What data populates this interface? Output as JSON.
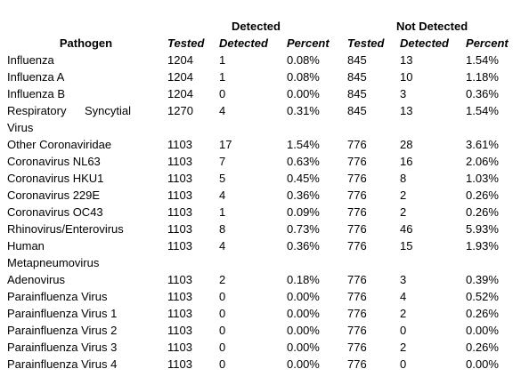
{
  "header": {
    "groups": [
      "Detected",
      "Not Detected"
    ],
    "columns": [
      "Pathogen",
      "Tested",
      "Detected",
      "Percent",
      "Tested",
      "Detected",
      "Percent"
    ]
  },
  "table": {
    "rows": [
      [
        "Influenza",
        "1204",
        "1",
        "0.08%",
        "845",
        "13",
        "1.54%"
      ],
      [
        "Influenza A",
        "1204",
        "1",
        "0.08%",
        "845",
        "10",
        "1.18%"
      ],
      [
        "Influenza B",
        "1204",
        "0",
        "0.00%",
        "845",
        "3",
        "0.36%"
      ],
      [
        "Respiratory Syncytial Virus",
        "1270",
        "4",
        "0.31%",
        "845",
        "13",
        "1.54%"
      ],
      [
        "Other Coronaviridae",
        "1103",
        "17",
        "1.54%",
        "776",
        "28",
        "3.61%"
      ],
      [
        "Coronavirus NL63",
        "1103",
        "7",
        "0.63%",
        "776",
        "16",
        "2.06%"
      ],
      [
        "Coronavirus HKU1",
        "1103",
        "5",
        "0.45%",
        "776",
        "8",
        "1.03%"
      ],
      [
        "Coronavirus 229E",
        "1103",
        "4",
        "0.36%",
        "776",
        "2",
        "0.26%"
      ],
      [
        "Coronavirus OC43",
        "1103",
        "1",
        "0.09%",
        "776",
        "2",
        "0.26%"
      ],
      [
        "Rhinovirus/Enterovirus",
        "1103",
        "8",
        "0.73%",
        "776",
        "46",
        "5.93%"
      ],
      [
        "Human Metapneumovirus",
        "1103",
        "4",
        "0.36%",
        "776",
        "15",
        "1.93%"
      ],
      [
        "Adenovirus",
        "1103",
        "2",
        "0.18%",
        "776",
        "3",
        "0.39%"
      ],
      [
        "Parainfluenza Virus",
        "1103",
        "0",
        "0.00%",
        "776",
        "4",
        "0.52%"
      ],
      [
        "Parainfluenza Virus 1",
        "1103",
        "0",
        "0.00%",
        "776",
        "2",
        "0.26%"
      ],
      [
        "Parainfluenza Virus 2",
        "1103",
        "0",
        "0.00%",
        "776",
        "0",
        "0.00%"
      ],
      [
        "Parainfluenza Virus 3",
        "1103",
        "0",
        "0.00%",
        "776",
        "2",
        "0.26%"
      ],
      [
        "Parainfluenza Virus 4",
        "1103",
        "0",
        "0.00%",
        "776",
        "0",
        "0.00%"
      ]
    ]
  }
}
